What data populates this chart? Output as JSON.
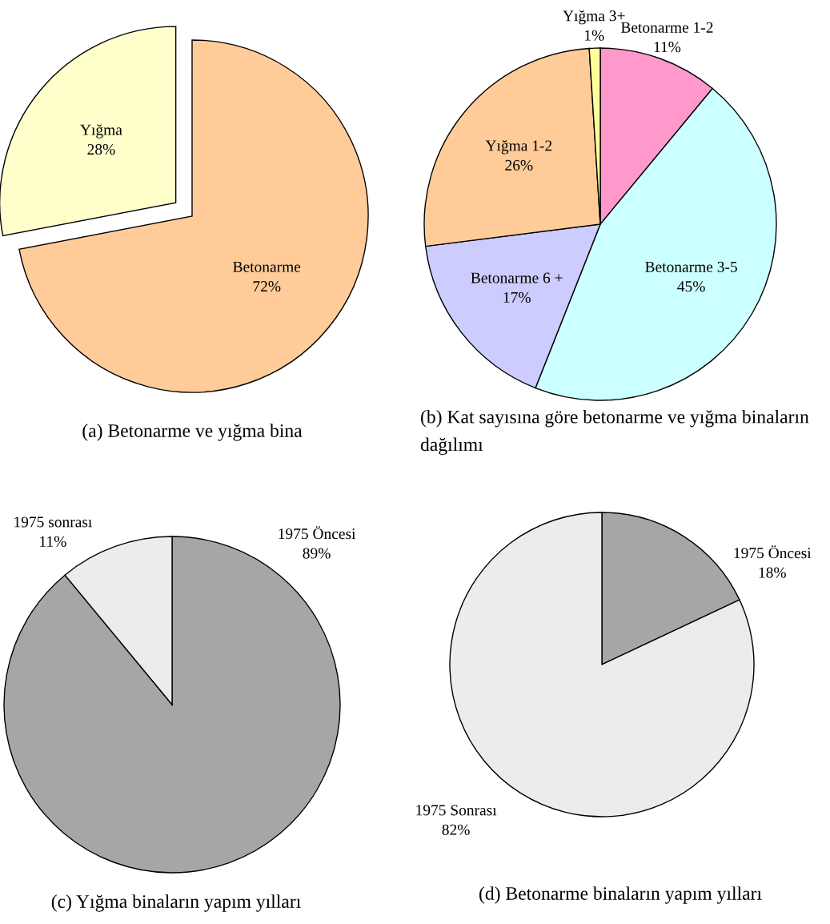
{
  "chart_data": [
    {
      "type": "pie",
      "title": "(a) Betonarme ve yığma bina",
      "categories": [
        "Betonarme",
        "Yığma"
      ],
      "values": [
        72,
        28
      ],
      "colors": [
        "#ffcc99",
        "#ffffcc"
      ],
      "value_labels": [
        "72%",
        "28%"
      ]
    },
    {
      "type": "pie",
      "title": "(b) Kat sayısına göre betonarme ve yığma binaların dağılımı",
      "categories": [
        "Betonarme 1-2",
        "Betonarme 3-5",
        "Betonarme 6 +",
        "Yığma 1-2",
        "Yığma 3+"
      ],
      "values": [
        11,
        45,
        17,
        26,
        1
      ],
      "colors": [
        "#ff99cc",
        "#ccffff",
        "#ccccff",
        "#ffcc99",
        "#ffff99"
      ],
      "value_labels": [
        "11%",
        "45%",
        "17%",
        "26%",
        "1%"
      ]
    },
    {
      "type": "pie",
      "title": "(c) Yığma binaların yapım yılları",
      "categories": [
        "1975 Öncesi",
        "1975 sonrası"
      ],
      "values": [
        89,
        11
      ],
      "colors": [
        "#a6a6a6",
        "#ececec"
      ],
      "value_labels": [
        "89%",
        "11%"
      ]
    },
    {
      "type": "pie",
      "title": "(d) Betonarme binaların yapım yılları",
      "categories": [
        "1975 Öncesi",
        "1975 Sonrası"
      ],
      "values": [
        18,
        82
      ],
      "colors": [
        "#a6a6a6",
        "#ececec"
      ],
      "value_labels": [
        "18%",
        "82%"
      ]
    }
  ]
}
